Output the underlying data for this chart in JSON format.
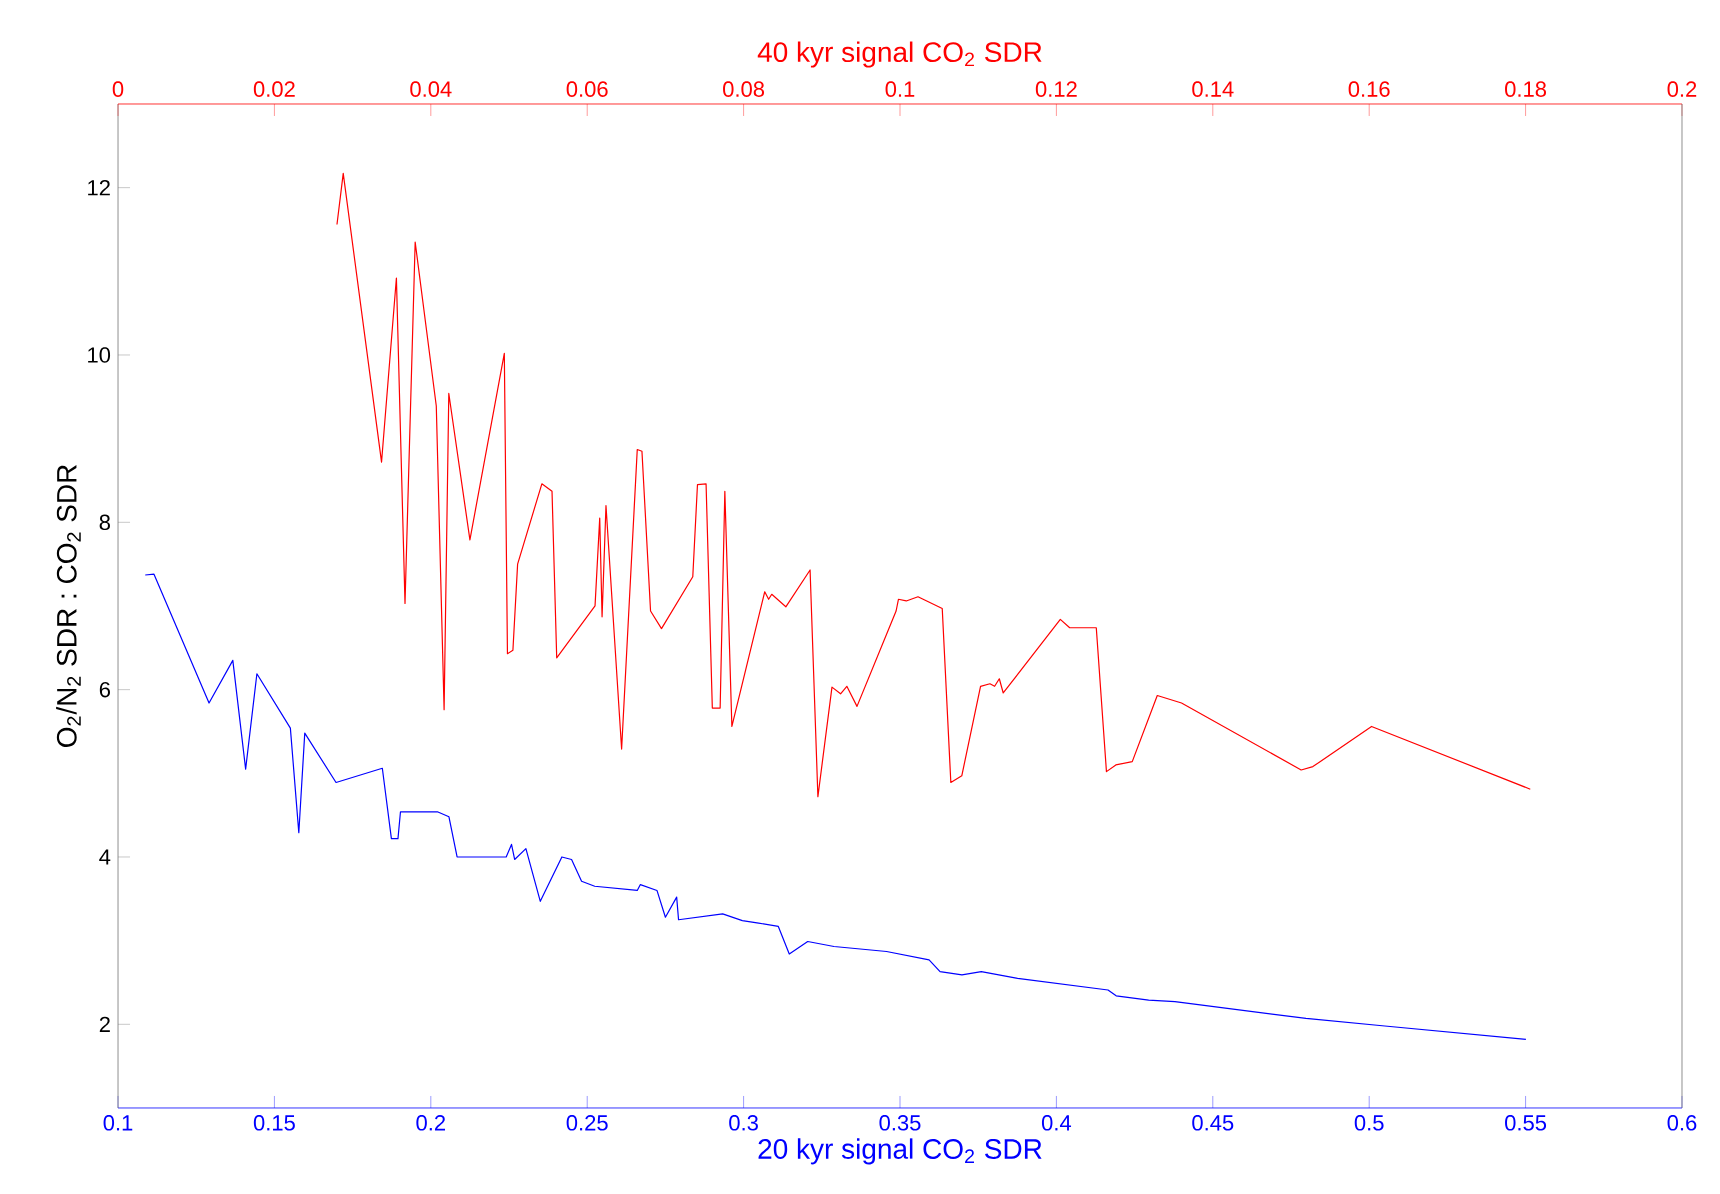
{
  "chart_data": {
    "type": "line",
    "xlabel": "20 kyr signal CO$_{2}$ SDR",
    "x2label": "40 kyr signal CO$_{2}$ SDR",
    "ylabel": "O$_{2}$/N$_{2}$ SDR : CO$_{2}$ SDR",
    "xlim": [
      0.1,
      0.6
    ],
    "xticks": [
      0.1,
      0.15,
      0.2,
      0.25,
      0.3,
      0.35,
      0.4,
      0.45,
      0.5,
      0.55,
      0.6
    ],
    "x2lim": [
      0,
      0.2
    ],
    "x2ticks": [
      0,
      0.02,
      0.04,
      0.06,
      0.08,
      0.1,
      0.12,
      0.14,
      0.16,
      0.18,
      0.2
    ],
    "ylim": [
      1,
      13
    ],
    "yticks": [
      2,
      4,
      6,
      8,
      10,
      12
    ],
    "line_style": "solid",
    "series": [
      {
        "color": "#0000ff",
        "x": [
          0.1087,
          0.1115,
          0.1291,
          0.1367,
          0.1408,
          0.1444,
          0.1551,
          0.1578,
          0.1597,
          0.1697,
          0.1845,
          0.1874,
          0.1895,
          0.1903,
          0.2021,
          0.2058,
          0.2084,
          0.2241,
          0.2258,
          0.2268,
          0.2304,
          0.235,
          0.2419,
          0.245,
          0.2482,
          0.2524,
          0.266,
          0.267,
          0.2723,
          0.275,
          0.2786,
          0.2792,
          0.2933,
          0.2996,
          0.3048,
          0.3111,
          0.3146,
          0.3205,
          0.3289,
          0.3457,
          0.3593,
          0.3628,
          0.3698,
          0.376,
          0.3876,
          0.4165,
          0.4191,
          0.4295,
          0.4379,
          0.4798,
          0.505,
          0.5501
        ],
        "values": [
          7.37,
          7.38,
          5.84,
          6.35,
          5.05,
          6.19,
          5.54,
          4.29,
          5.48,
          4.89,
          5.06,
          4.22,
          4.22,
          4.54,
          4.54,
          4.48,
          4.0,
          4.0,
          4.15,
          3.97,
          4.1,
          3.47,
          4.0,
          3.97,
          3.71,
          3.65,
          3.6,
          3.67,
          3.6,
          3.28,
          3.52,
          3.25,
          3.32,
          3.24,
          3.21,
          3.17,
          2.84,
          2.99,
          2.93,
          2.87,
          2.77,
          2.63,
          2.59,
          2.63,
          2.55,
          2.41,
          2.34,
          2.29,
          2.27,
          2.07,
          1.98,
          1.82
        ]
      },
      {
        "color": "#ff0000",
        "axis": "x2",
        "x": [
          0.028,
          0.0288,
          0.0337,
          0.0356,
          0.0367,
          0.038,
          0.0407,
          0.0417,
          0.0423,
          0.045,
          0.0494,
          0.0498,
          0.0505,
          0.0511,
          0.0542,
          0.0555,
          0.0561,
          0.061,
          0.0616,
          0.0619,
          0.0624,
          0.0644,
          0.0664,
          0.067,
          0.0681,
          0.0695,
          0.0735,
          0.0741,
          0.0752,
          0.076,
          0.077,
          0.0776,
          0.0785,
          0.0827,
          0.0832,
          0.0836,
          0.0854,
          0.0885,
          0.0895,
          0.0913,
          0.0924,
          0.0932,
          0.0945,
          0.0995,
          0.0998,
          0.1008,
          0.1023,
          0.1054,
          0.1065,
          0.1079,
          0.1103,
          0.1115,
          0.1121,
          0.1127,
          0.1132,
          0.1205,
          0.1217,
          0.1251,
          0.1264,
          0.1276,
          0.1297,
          0.1329,
          0.136,
          0.1513,
          0.1528,
          0.1603,
          0.1806
        ],
        "values": [
          11.56,
          12.17,
          8.72,
          10.92,
          7.03,
          11.35,
          9.39,
          5.76,
          9.54,
          7.79,
          10.02,
          6.43,
          6.47,
          7.5,
          8.46,
          8.37,
          6.38,
          7.0,
          8.05,
          6.87,
          8.2,
          5.29,
          8.87,
          8.85,
          6.94,
          6.73,
          7.35,
          8.45,
          8.46,
          5.78,
          5.78,
          8.37,
          5.56,
          7.17,
          7.08,
          7.14,
          6.99,
          7.43,
          4.72,
          6.03,
          5.95,
          6.04,
          5.8,
          6.94,
          7.08,
          7.06,
          7.11,
          6.97,
          4.89,
          4.97,
          6.04,
          6.07,
          6.04,
          6.13,
          5.96,
          6.84,
          6.74,
          6.74,
          5.02,
          5.1,
          5.14,
          5.93,
          5.84,
          5.04,
          5.08,
          5.56,
          4.81
        ]
      }
    ]
  }
}
